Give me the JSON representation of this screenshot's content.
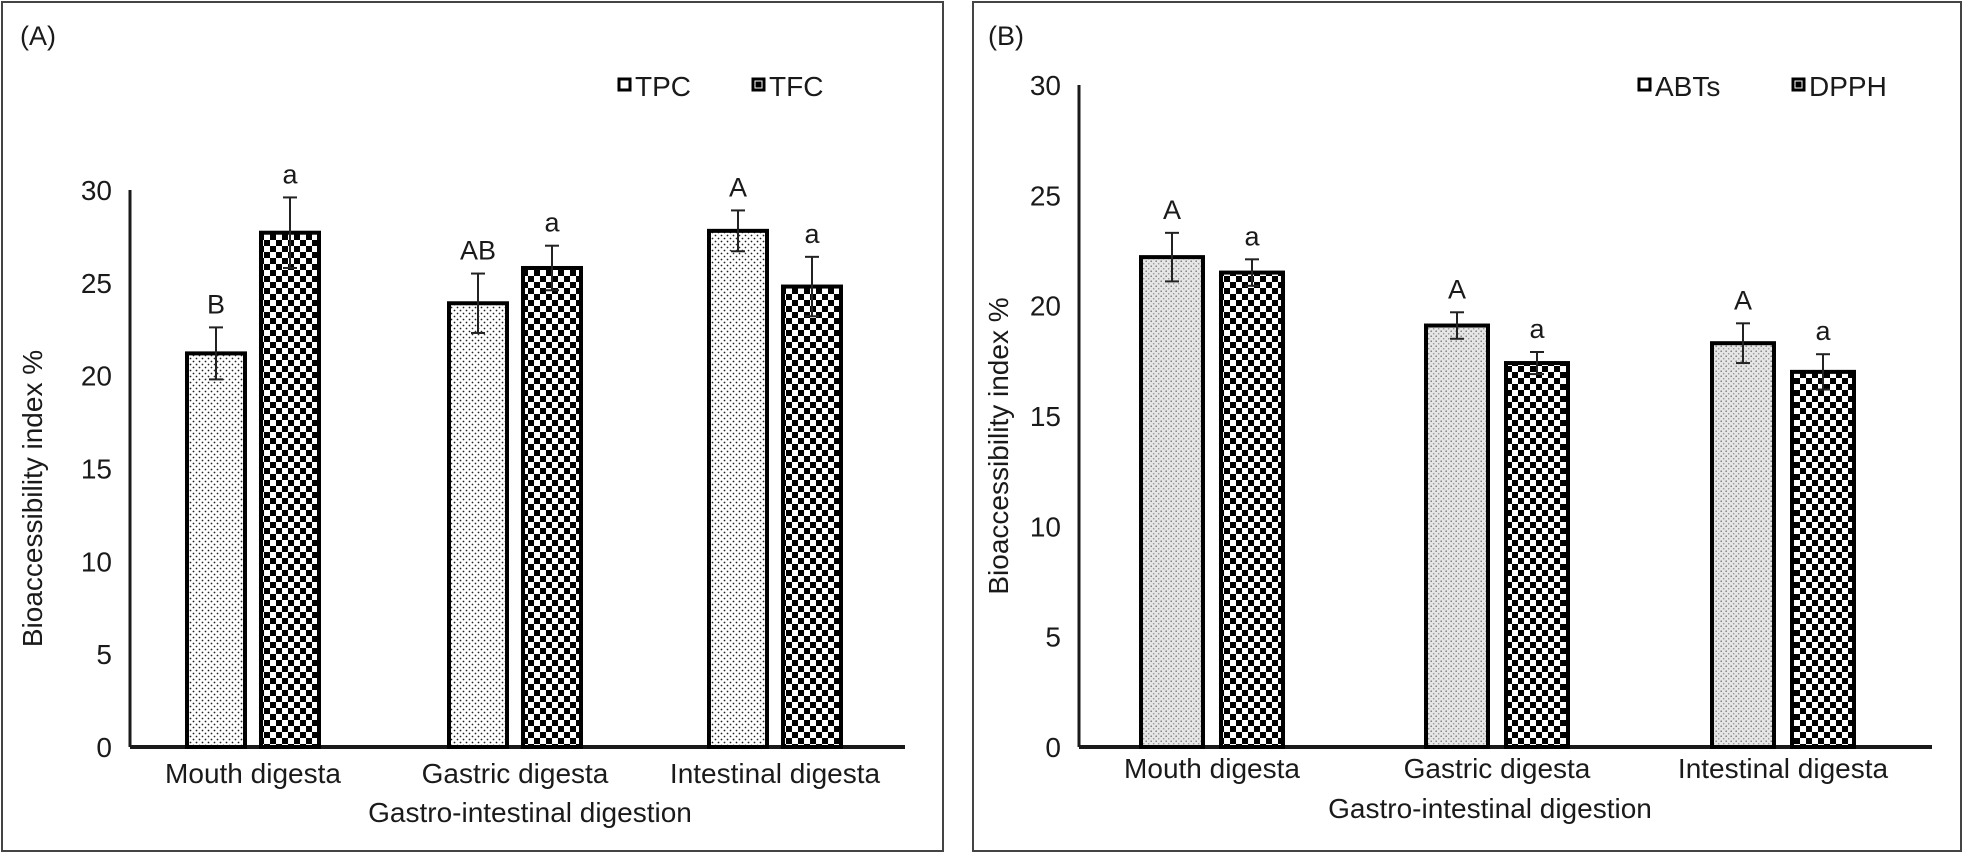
{
  "chart_data": [
    {
      "type": "bar",
      "panel_label": "(A)",
      "title": "",
      "xlabel": "Gastro-intestinal digestion",
      "ylabel": "Bioaccessibility index %",
      "ylim": [
        0,
        30
      ],
      "yticks": [
        0,
        5,
        10,
        15,
        20,
        25,
        30
      ],
      "grid": false,
      "legend_position": "top-right",
      "categories": [
        "Mouth digesta",
        "Gastric digesta",
        "Intestinal digesta"
      ],
      "series": [
        {
          "name": "TPC",
          "pattern": "dots",
          "values": [
            21.2,
            23.9,
            27.8
          ],
          "errors": [
            1.4,
            1.6,
            1.1
          ],
          "letters": [
            "B",
            "AB",
            "A"
          ]
        },
        {
          "name": "TFC",
          "pattern": "checker",
          "values": [
            27.7,
            25.8,
            24.8
          ],
          "errors": [
            1.9,
            1.2,
            1.6
          ],
          "letters": [
            "a",
            "a",
            "a"
          ]
        }
      ]
    },
    {
      "type": "bar",
      "panel_label": "(B)",
      "title": "",
      "xlabel": "Gastro-intestinal digestion",
      "ylabel": "Bioaccessibility index %",
      "ylim": [
        0,
        30
      ],
      "yticks": [
        0,
        5,
        10,
        15,
        20,
        25,
        30
      ],
      "grid": false,
      "legend_position": "top-right",
      "categories": [
        "Mouth digesta",
        "Gastric digesta",
        "Intestinal digesta"
      ],
      "series": [
        {
          "name": "ABTs",
          "pattern": "dots-grey",
          "values": [
            22.2,
            19.1,
            18.3
          ],
          "errors": [
            1.1,
            0.6,
            0.9
          ],
          "letters": [
            "A",
            "A",
            "A"
          ]
        },
        {
          "name": "DPPH",
          "pattern": "checker",
          "values": [
            21.5,
            17.4,
            17.0
          ],
          "errors": [
            0.6,
            0.5,
            0.8
          ],
          "letters": [
            "a",
            "a",
            "a"
          ]
        }
      ]
    }
  ]
}
